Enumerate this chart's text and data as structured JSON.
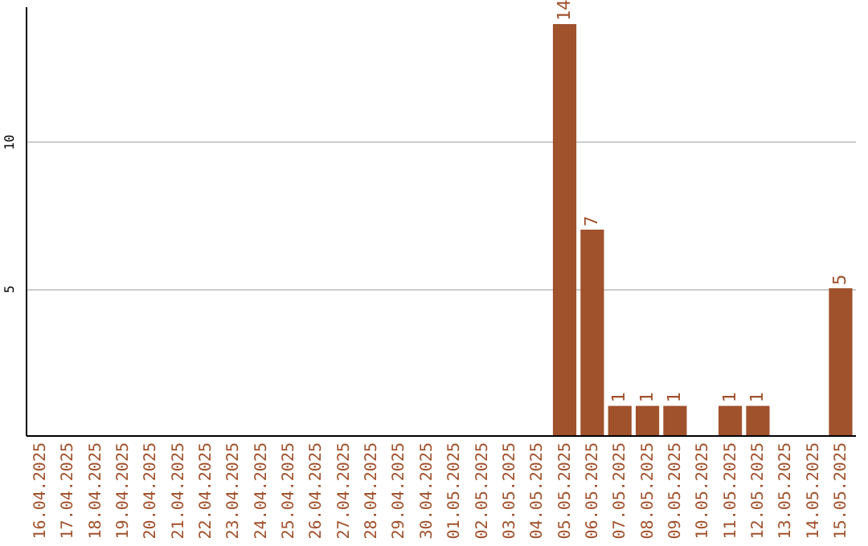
{
  "chart_data": {
    "type": "bar",
    "categories": [
      "16.04.2025",
      "17.04.2025",
      "18.04.2025",
      "19.04.2025",
      "20.04.2025",
      "21.04.2025",
      "22.04.2025",
      "23.04.2025",
      "24.04.2025",
      "25.04.2025",
      "26.04.2025",
      "27.04.2025",
      "28.04.2025",
      "29.04.2025",
      "30.04.2025",
      "01.05.2025",
      "02.05.2025",
      "03.05.2025",
      "04.05.2025",
      "05.05.2025",
      "06.05.2025",
      "07.05.2025",
      "08.05.2025",
      "09.05.2025",
      "10.05.2025",
      "11.05.2025",
      "12.05.2025",
      "13.05.2025",
      "14.05.2025",
      "15.05.2025"
    ],
    "values": [
      0,
      0,
      0,
      0,
      0,
      0,
      0,
      0,
      0,
      0,
      0,
      0,
      0,
      0,
      0,
      0,
      0,
      0,
      0,
      14,
      7,
      1,
      1,
      1,
      0,
      1,
      1,
      0,
      0,
      5
    ],
    "value_labels": [
      null,
      null,
      null,
      null,
      null,
      null,
      null,
      null,
      null,
      null,
      null,
      null,
      null,
      null,
      null,
      null,
      null,
      null,
      null,
      "14",
      "7",
      "1",
      "1",
      "1",
      null,
      "1",
      "1",
      null,
      null,
      "5"
    ],
    "color": "#a0522d",
    "ylim": [
      0,
      14.6
    ],
    "yticks": [
      5,
      10
    ],
    "grid": "y"
  }
}
